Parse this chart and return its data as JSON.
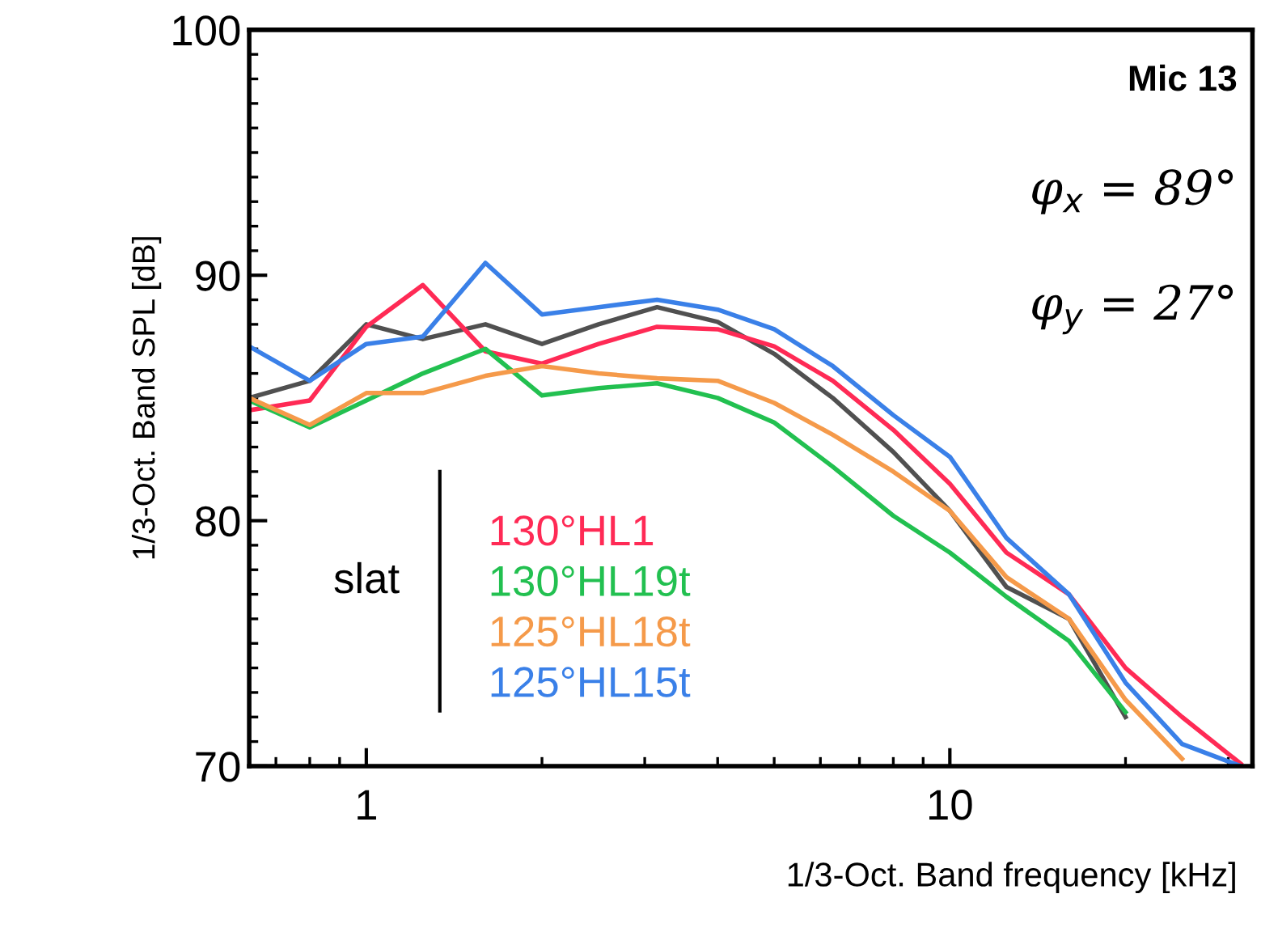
{
  "chart_data": {
    "type": "line",
    "xlabel": "1/3-Oct. Band frequency [kHz]",
    "ylabel": "1/3-Oct. Band SPL [dB]",
    "log": "x",
    "x": [
      0.63,
      0.8,
      1,
      1.25,
      1.6,
      2,
      2.5,
      3.15,
      4,
      5,
      6.3,
      8,
      10,
      12.5,
      16,
      20,
      25,
      31.5
    ],
    "xlim": [
      0.63,
      33
    ],
    "xticks": [
      1,
      10
    ],
    "ylim": [
      70,
      100
    ],
    "yticks": [
      70,
      80,
      90,
      100
    ],
    "grid": false,
    "legend": "bottom left",
    "legend_title": "slat",
    "marker": "none",
    "line_style": "solid",
    "annotations": [
      "Mic 13",
      "φ$_{x}$ = 89°",
      "φ$_{y}$ = 27°"
    ],
    "series": [
      {
        "color": "#505050",
        "values": [
          85.0,
          85.7,
          88.0,
          87.4,
          88.0,
          87.2,
          88.0,
          88.7,
          88.1,
          86.8,
          85.0,
          82.8,
          80.4,
          77.3,
          76.0,
          72.0,
          null,
          null
        ]
      },
      {
        "name": "130°HL1",
        "color": "#ff2a55",
        "values": [
          84.5,
          84.9,
          87.9,
          89.6,
          86.9,
          86.4,
          87.2,
          87.9,
          87.8,
          87.1,
          85.7,
          83.7,
          81.5,
          78.7,
          77.0,
          74.0,
          72.0,
          70.1
        ]
      },
      {
        "name": "130°HL19t",
        "color": "#22c050",
        "values": [
          84.9,
          83.8,
          84.9,
          86.0,
          87.0,
          85.1,
          85.4,
          85.6,
          85.0,
          84.0,
          82.2,
          80.2,
          78.7,
          76.9,
          75.1,
          72.2,
          null,
          null
        ]
      },
      {
        "name": "125°HL18t",
        "color": "#f59a4a",
        "values": [
          85.0,
          83.9,
          85.2,
          85.2,
          85.9,
          86.3,
          86.0,
          85.8,
          85.7,
          84.8,
          83.5,
          82.0,
          80.4,
          77.7,
          76.0,
          72.7,
          70.3,
          null
        ]
      },
      {
        "name": "125°HL15t",
        "color": "#3a80e8",
        "values": [
          87.1,
          85.7,
          87.2,
          87.5,
          90.5,
          88.4,
          88.7,
          89.0,
          88.6,
          87.8,
          86.3,
          84.3,
          82.6,
          79.3,
          77.0,
          73.4,
          70.9,
          70.0
        ]
      }
    ]
  }
}
